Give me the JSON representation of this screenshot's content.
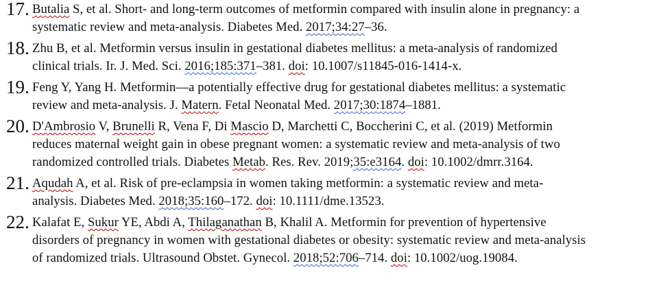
{
  "references": [
    {
      "number": "17.",
      "lines": [
        [
          {
            "t": "Butalia",
            "u": "red"
          },
          {
            "t": " S, et al. Short- and long-term outcomes of metformin compared with insulin alone in pregnancy: a"
          }
        ],
        [
          {
            "t": "systematic review and meta-analysis. Diabetes Med. "
          },
          {
            "t": "2017;34:27",
            "u": "blue"
          },
          {
            "t": "–36."
          }
        ]
      ]
    },
    {
      "number": "18.",
      "lines": [
        [
          {
            "t": "Zhu B, et al. Metformin versus insulin in gestational diabetes mellitus: a meta-analysis of randomized"
          }
        ],
        [
          {
            "t": "clinical trials. Ir. J. Med. Sci. "
          },
          {
            "t": "2016;185:371",
            "u": "blue"
          },
          {
            "t": "–381. "
          },
          {
            "t": "doi",
            "u": "red"
          },
          {
            "t": ": 10.1007/s11845-016-1414-x."
          }
        ]
      ]
    },
    {
      "number": "19.",
      "lines": [
        [
          {
            "t": "Feng Y, Yang H. Metformin—a potentially effective drug for gestational diabetes mellitus: a systematic"
          }
        ],
        [
          {
            "t": "review and meta-analysis. J. "
          },
          {
            "t": "Matern",
            "u": "red"
          },
          {
            "t": ". Fetal Neonatal Med. "
          },
          {
            "t": "2017;30:1874",
            "u": "blue"
          },
          {
            "t": "–1881."
          }
        ]
      ]
    },
    {
      "number": "20.",
      "lines": [
        [
          {
            "t": "D'Ambrosio",
            "u": "red"
          },
          {
            "t": " V, "
          },
          {
            "t": "Brunelli",
            "u": "red"
          },
          {
            "t": " R, Vena F, Di "
          },
          {
            "t": "Mascio",
            "u": "red"
          },
          {
            "t": " D, Marchetti C, Boccherini C, et al. (2019) Metformin"
          }
        ],
        [
          {
            "t": "reduces maternal weight gain in obese pregnant women: a systematic review and meta-analysis of two"
          }
        ],
        [
          {
            "t": "randomized controlled trials. Diabetes "
          },
          {
            "t": "Metab",
            "u": "red"
          },
          {
            "t": ". Res. Rev. 2019;"
          },
          {
            "t": "35:e3164",
            "u": "blue"
          },
          {
            "t": ". "
          },
          {
            "t": "doi",
            "u": "red"
          },
          {
            "t": ": 10.1002/dmrr.3164."
          }
        ]
      ]
    },
    {
      "number": "21.",
      "lines": [
        [
          {
            "t": "Aqudah",
            "u": "red"
          },
          {
            "t": " A, et al. Risk of pre-eclampsia in women taking metformin: a systematic review and meta-"
          }
        ],
        [
          {
            "t": "analysis. Diabetes Med. "
          },
          {
            "t": "2018;35:160",
            "u": "blue"
          },
          {
            "t": "–172. "
          },
          {
            "t": "doi",
            "u": "red"
          },
          {
            "t": ": 10.1111/dme.13523."
          }
        ]
      ]
    },
    {
      "number": "22.",
      "lines": [
        [
          {
            "t": "Kalafat E, "
          },
          {
            "t": "Sukur",
            "u": "red"
          },
          {
            "t": " YE, Abdi A, "
          },
          {
            "t": "Thilaganathan",
            "u": "red"
          },
          {
            "t": " B, Khalil A. Metformin for prevention of hypertensive"
          }
        ],
        [
          {
            "t": "disorders of pregnancy in women with gestational diabetes or obesity: systematic review and meta-analysis"
          }
        ],
        [
          {
            "t": "of randomized trials. Ultrasound Obstet. Gynecol. "
          },
          {
            "t": "2018;52:706",
            "u": "blue"
          },
          {
            "t": "–714. "
          },
          {
            "t": "doi",
            "u": "red"
          },
          {
            "t": ": 10.1002/uog.19084."
          }
        ]
      ]
    }
  ]
}
